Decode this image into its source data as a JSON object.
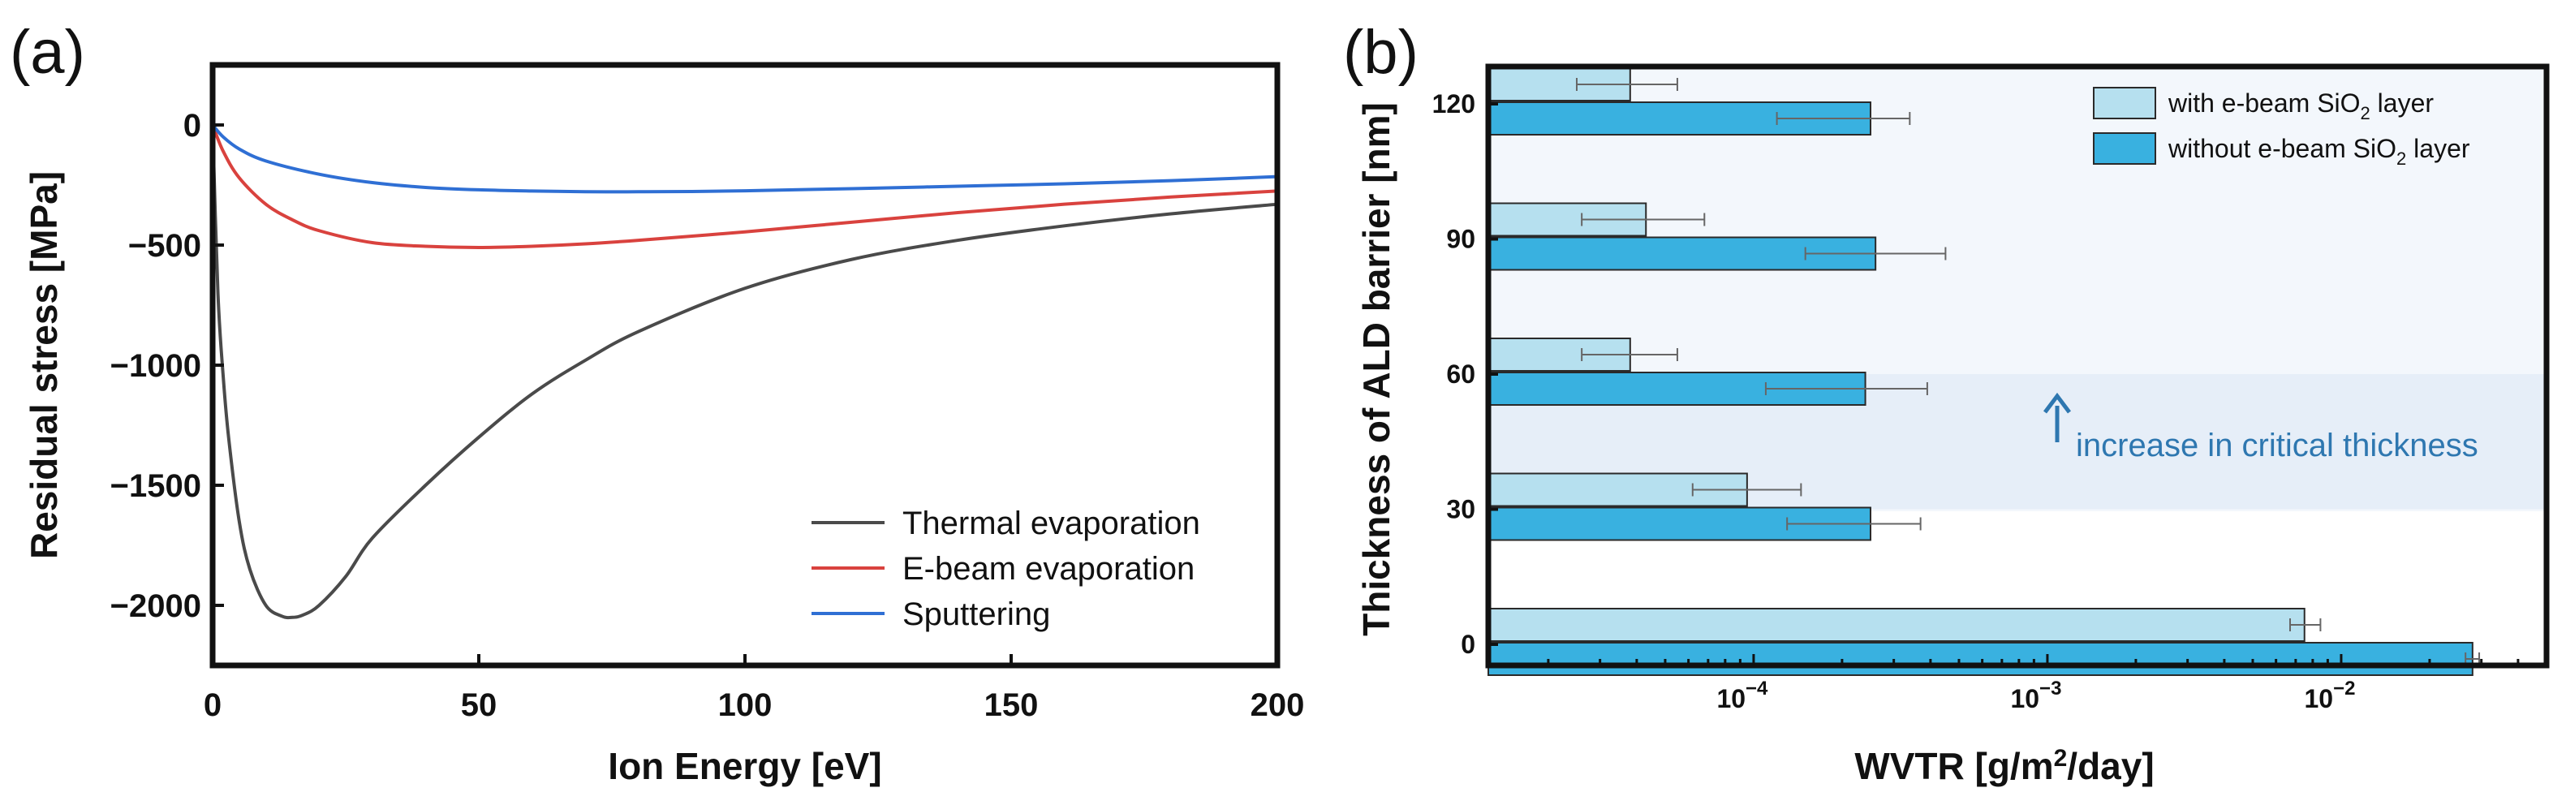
{
  "panel_a_label": "(a)",
  "panel_b_label": "(b)",
  "chart_data": [
    {
      "type": "line",
      "panel": "(a)",
      "xlabel": "Ion Energy [eV]",
      "ylabel": "Residual stress [MPa]",
      "xlim": [
        0,
        200
      ],
      "ylim": [
        -2250,
        250
      ],
      "xticks": [
        0,
        50,
        100,
        150,
        200
      ],
      "yticks": [
        0,
        -500,
        -1000,
        -1500,
        -2000
      ],
      "ytick_labels": [
        "0",
        "−500",
        "−1000",
        "−1500",
        "−2000"
      ],
      "legend_position": "bottom-right",
      "series": [
        {
          "name": "Thermal evaporation",
          "color": "#4a4a4a",
          "x": [
            0,
            1,
            2,
            3,
            5,
            7,
            10,
            13,
            15,
            17,
            20,
            25,
            30,
            40,
            50,
            60,
            70,
            80,
            100,
            120,
            140,
            160,
            180,
            200
          ],
          "y": [
            0,
            -700,
            -1050,
            -1300,
            -1650,
            -1850,
            -2000,
            -2045,
            -2050,
            -2040,
            -2000,
            -1880,
            -1720,
            -1500,
            -1300,
            -1120,
            -980,
            -860,
            -680,
            -560,
            -480,
            -420,
            -370,
            -330
          ]
        },
        {
          "name": "E-beam evaporation",
          "color": "#d9423e",
          "x": [
            0,
            2,
            5,
            10,
            15,
            20,
            30,
            40,
            50,
            60,
            70,
            80,
            100,
            120,
            140,
            160,
            180,
            200
          ],
          "y": [
            0,
            -110,
            -220,
            -330,
            -395,
            -440,
            -490,
            -505,
            -510,
            -505,
            -495,
            -480,
            -445,
            -405,
            -365,
            -330,
            -300,
            -275
          ]
        },
        {
          "name": "Sputtering",
          "color": "#2f6fd4",
          "x": [
            0,
            2,
            5,
            10,
            20,
            30,
            40,
            50,
            60,
            70,
            80,
            90,
            100,
            120,
            140,
            160,
            180,
            200
          ],
          "y": [
            0,
            -50,
            -100,
            -150,
            -205,
            -240,
            -260,
            -270,
            -275,
            -278,
            -278,
            -277,
            -274,
            -265,
            -255,
            -245,
            -232,
            -215
          ]
        }
      ]
    },
    {
      "type": "bar",
      "orientation": "horizontal",
      "panel": "(b)",
      "xlabel": "WVTR [g/m2/day]",
      "ylabel": "Thickness of ALD barrier [nm]",
      "xscale": "log",
      "xlim": [
        1.25e-05,
        0.05
      ],
      "xticks": [
        0.0001,
        0.001,
        0.01
      ],
      "xtick_labels": [
        {
          "base": "10",
          "exp": "−4"
        },
        {
          "base": "10",
          "exp": "−3"
        },
        {
          "base": "10",
          "exp": "−2"
        }
      ],
      "categories": [
        "0",
        "30",
        "60",
        "90",
        "120"
      ],
      "legend_position": "top-right",
      "series": [
        {
          "name": "with e-beam SiO2 layer",
          "legend_main": "with e-beam SiO",
          "legend_sub": "2",
          "legend_tail": " layer",
          "color": "#b6e0ef",
          "values": [
            0.0075,
            9.5e-05,
            3.8e-05,
            4.3e-05,
            3.8e-05
          ],
          "err_low": [
            0.0067,
            6.2e-05,
            2.6e-05,
            2.6e-05,
            2.5e-05
          ],
          "err_high": [
            0.0085,
            0.000145,
            5.5e-05,
            6.8e-05,
            5.5e-05
          ]
        },
        {
          "name": "without e-beam SiO2 layer",
          "legend_main": "without e-beam SiO",
          "legend_sub": "2",
          "legend_tail": " layer",
          "color": "#39b1e0",
          "values": [
            0.028,
            0.00025,
            0.00024,
            0.00026,
            0.00025
          ],
          "err_low": [
            0.0265,
            0.00013,
            0.00011,
            0.00015,
            0.00012
          ],
          "err_high": [
            0.0295,
            0.00037,
            0.00039,
            0.00045,
            0.00034
          ]
        }
      ],
      "annotation": "increase in critical thickness",
      "shaded_band_nm": [
        30,
        60
      ],
      "colors": {
        "band_light": "#f3f7fc",
        "band_dark": "#e6eef8",
        "annotation": "#2e77b0"
      }
    }
  ]
}
